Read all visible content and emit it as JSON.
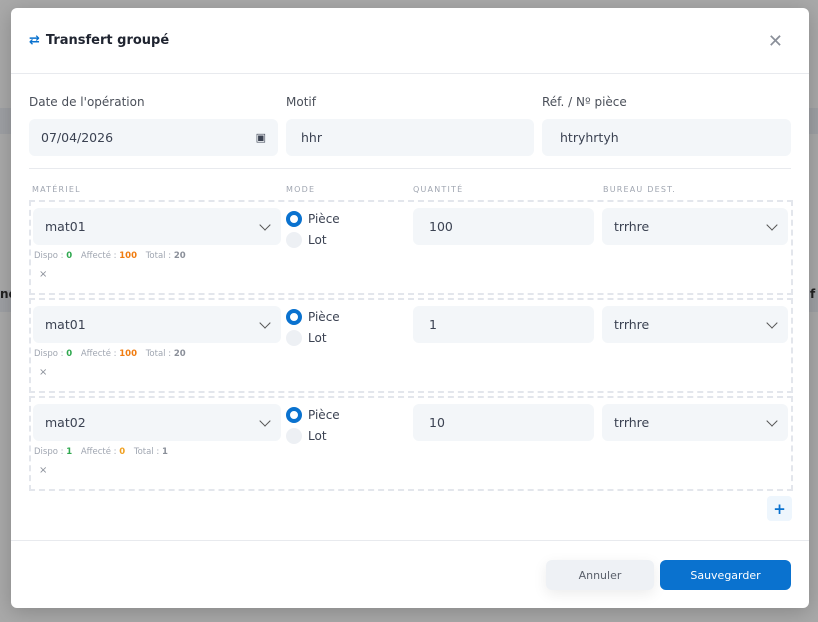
{
  "background": {
    "left_fragment": "ne",
    "right_fragment": "f"
  },
  "modal": {
    "title": "Transfert groupé",
    "title_icon": "arrows-exchange-icon",
    "close_icon": "close-icon"
  },
  "form": {
    "date_label": "Date de l'opération",
    "date_value": "07/04/2026",
    "motif_label": "Motif",
    "motif_value": "hhr",
    "ref_label": "Réf. / Nº pièce",
    "ref_value": "htryhrtyh"
  },
  "columns": {
    "materiel": "MATÉRIEL",
    "mode": "MODE",
    "quantite": "QUANTITÉ",
    "bureau": "BUREAU DEST."
  },
  "rows": [
    {
      "materiel": "mat01",
      "mode_options": [
        "Pièce",
        "Lot"
      ],
      "mode_selected": "Pièce",
      "quantite": "100",
      "bureau": "trrhre",
      "dispo_label": "Dispo :",
      "dispo": "0",
      "affecte_label": "Affecté :",
      "affecte": "100",
      "total_label": "Total :",
      "total": "20",
      "remove": "×"
    },
    {
      "materiel": "mat01",
      "mode_options": [
        "Pièce",
        "Lot"
      ],
      "mode_selected": "Pièce",
      "quantite": "1",
      "bureau": "trrhre",
      "dispo_label": "Dispo :",
      "dispo": "0",
      "affecte_label": "Affecté :",
      "affecte": "100",
      "total_label": "Total :",
      "total": "20",
      "remove": "×"
    },
    {
      "materiel": "mat02",
      "mode_options": [
        "Pièce",
        "Lot"
      ],
      "mode_selected": "Pièce",
      "quantite": "10",
      "bureau": "trrhre",
      "dispo_label": "Dispo :",
      "dispo": "1",
      "affecte_label": "Affecté :",
      "affecte": "0",
      "total_label": "Total :",
      "total": "1",
      "remove": "×"
    }
  ],
  "add_label": "+",
  "footer": {
    "cancel": "Annuler",
    "save": "Sauvegarder"
  },
  "colors": {
    "accent": "#0a72cf",
    "dispo_green": "#2fa84f",
    "affecte_orange": "#f07c10",
    "affecte_zero": "#f0a020",
    "muted": "#a0a6b1"
  }
}
